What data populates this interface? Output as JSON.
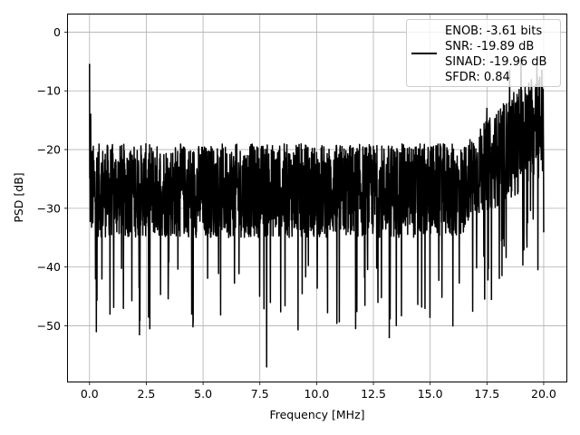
{
  "chart_data": {
    "type": "line",
    "title": "",
    "xlabel": "Frequency [MHz]",
    "ylabel": "PSD [dB]",
    "xlim": [
      -0.95,
      21.0
    ],
    "ylim": [
      -59.5,
      3
    ],
    "xticks": [
      0.0,
      2.5,
      5.0,
      7.5,
      10.0,
      12.5,
      15.0,
      17.5,
      20.0
    ],
    "xtick_labels": [
      "0.0",
      "2.5",
      "5.0",
      "7.5",
      "10.0",
      "12.5",
      "15.0",
      "17.5",
      "20.0"
    ],
    "yticks": [
      0,
      -10,
      -20,
      -30,
      -40,
      -50
    ],
    "ytick_labels": [
      "0",
      "−10",
      "−20",
      "−30",
      "−40",
      "−50"
    ],
    "grid": true,
    "legend_position": "top-right",
    "legend_lines": [
      "ENOB: -3.61 bits",
      "SNR: -19.89 dB",
      "SINAD: -19.96 dB",
      "SFDR: 0.84"
    ],
    "series_color": "#000000",
    "series": [
      {
        "x_range": [
          0.0,
          20.0
        ],
        "noise_floor_db": -27,
        "upper_envelope_db": -19,
        "lower_envelope_db": -35,
        "notable_points": [
          {
            "x": 0.0,
            "y": -5.5
          },
          {
            "x": 0.05,
            "y": -14
          },
          {
            "x": 0.3,
            "y": -51
          },
          {
            "x": 0.9,
            "y": -48
          },
          {
            "x": 2.2,
            "y": -51.5
          },
          {
            "x": 2.6,
            "y": -48.5
          },
          {
            "x": 4.5,
            "y": -48
          },
          {
            "x": 7.8,
            "y": -57
          },
          {
            "x": 13.2,
            "y": -52
          },
          {
            "x": 16.0,
            "y": -50
          },
          {
            "x": 17.7,
            "y": -45.5
          },
          {
            "x": 17.5,
            "y": -13
          },
          {
            "x": 18.5,
            "y": -6.5
          },
          {
            "x": 19.0,
            "y": -4.5
          },
          {
            "x": 19.7,
            "y": -4.5
          },
          {
            "x": 20.0,
            "y": -34
          }
        ]
      }
    ]
  }
}
